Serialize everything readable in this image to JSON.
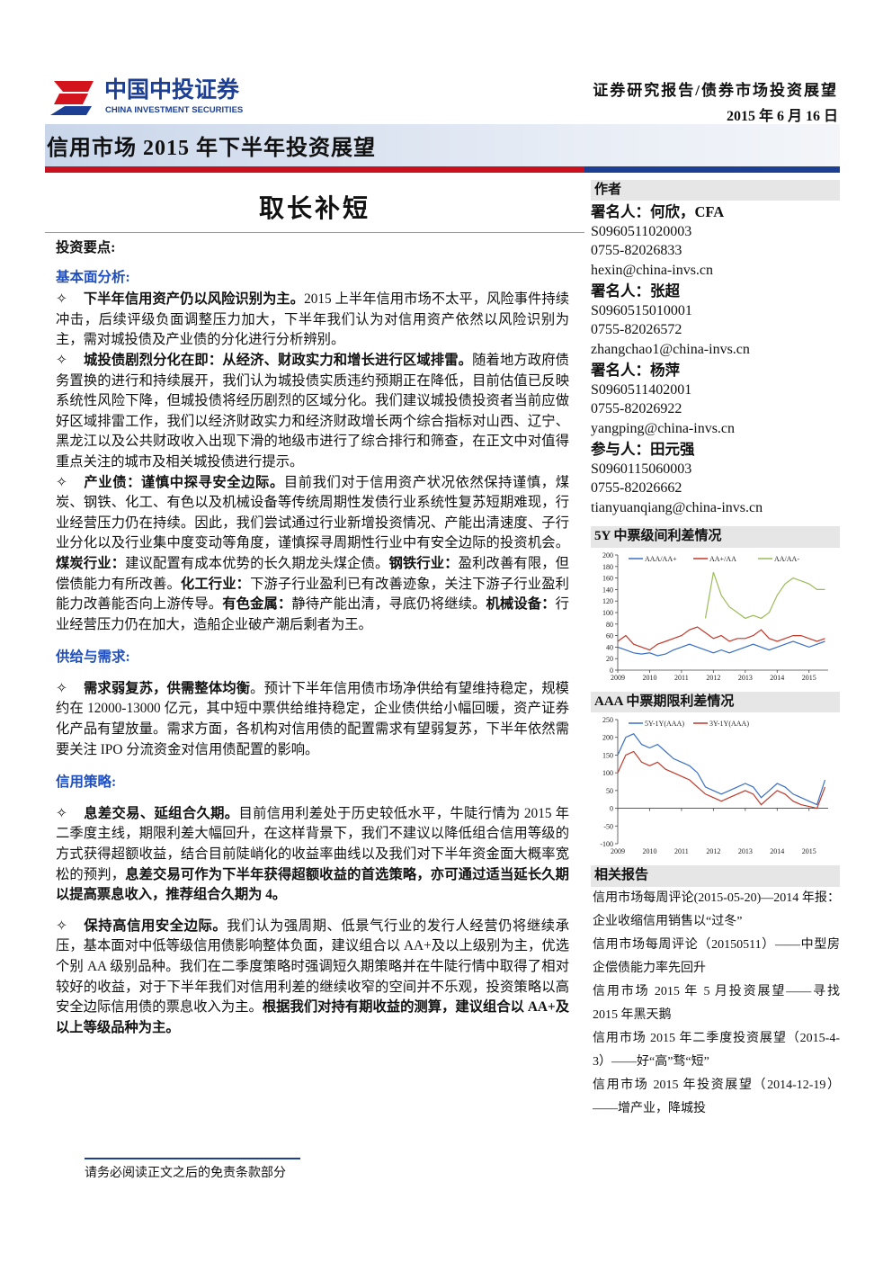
{
  "header": {
    "logo_cn": "中国中投证券",
    "logo_en": "CHINA INVESTMENT SECURITIES",
    "report_type": "证券研究报告/债券市场投资展望",
    "date": "2015 年 6 月 16 日",
    "title": "信用市场 2015 年下半年投资展望"
  },
  "main_title": "取长补短",
  "summary_label": "投资要点:",
  "bullet": "✧",
  "sections": [
    {
      "heading": "基本面分析:",
      "paragraphs": [
        [
          {
            "text": "下半年信用资产仍以风险识别为主。",
            "strong": true
          },
          {
            "text": "2015 上半年信用市场不太平，风险事件持续冲击，后续评级负面调整压力加大，下半年我们认为对信用资产依然以风险识别为主，需对城投债及产业债的分化进行分析辨别。",
            "strong": false
          }
        ],
        [
          {
            "text": "城投债剧烈分化在即：从经济、财政实力和增长进行区域排雷。",
            "strong": true
          },
          {
            "text": "随着地方政府债务置换的进行和持续展开，我们认为城投债实质违约预期正在降低，目前估值已反映系统性风险下降，但城投债将经历剧烈的区域分化。我们建议城投债投资者当前应做好区域排雷工作，我们以经济财政实力和经济财政增长两个综合指标对山西、辽宁、黑龙江以及公共财政收入出现下滑的地级市进行了综合排行和筛查，在正文中对值得重点关注的城市及相关城投债进行提示。",
            "strong": false
          }
        ],
        [
          {
            "text": "产业债：谨慎中探寻安全边际。",
            "strong": true
          },
          {
            "text": "目前我们对于信用资产状况依然保持谨慎，煤炭、钢铁、化工、有色以及机械设备等传统周期性发债行业系统性复苏短期难现，行业经营压力仍在持续。因此，我们尝试通过行业新增投资情况、产能出清速度、子行业分化以及行业集中度变动等角度，谨慎探寻周期性行业中有安全边际的投资机会。",
            "strong": false
          },
          {
            "text": "煤炭行业：",
            "strong": true
          },
          {
            "text": "建议配置有成本优势的长久期龙头煤企债。",
            "strong": false
          },
          {
            "text": "钢铁行业：",
            "strong": true
          },
          {
            "text": "盈利改善有限，但偿债能力有所改善。",
            "strong": false
          },
          {
            "text": "化工行业：",
            "strong": true
          },
          {
            "text": "下游子行业盈利已有改善迹象，关注下游子行业盈利能力改善能否向上游传导。",
            "strong": false
          },
          {
            "text": "有色金属：",
            "strong": true
          },
          {
            "text": "静待产能出清，寻底仍将继续。",
            "strong": false
          },
          {
            "text": "机械设备：",
            "strong": true
          },
          {
            "text": "行业经营压力仍在加大，造船企业破产潮后剩者为王。",
            "strong": false
          }
        ]
      ]
    },
    {
      "heading": "供给与需求:",
      "paragraphs": [
        [
          {
            "text": "需求弱复苏，供需整体均衡",
            "strong": true
          },
          {
            "text": "。预计下半年信用债市场净供给有望维持稳定，规模约在 12000-13000 亿元，其中短中票供给维持稳定，企业债供给小幅回暖，资产证券化产品有望放量。需求方面，各机构对信用债的配置需求有望弱复苏，下半年依然需要关注 IPO 分流资金对信用债配置的影响。",
            "strong": false
          }
        ]
      ]
    },
    {
      "heading": "信用策略:",
      "paragraphs": [
        [
          {
            "text": "息差交易、延组合久期。",
            "strong": true
          },
          {
            "text": "目前信用利差处于历史较低水平，牛陡行情为 2015 年二季度主线，期限利差大幅回升，在这样背景下，我们不建议以降低组合信用等级的方式获得超额收益，结合目前陡峭化的收益率曲线以及我们对下半年资金面大概率宽松的预判，",
            "strong": false
          },
          {
            "text": "息差交易可作为下半年获得超额收益的首选策略，亦可通过适当延长久期以提高票息收入，推荐组合久期为 4。",
            "strong": true
          }
        ],
        [
          {
            "text": "保持高信用安全边际。",
            "strong": true
          },
          {
            "text": "我们认为强周期、低景气行业的发行人经营仍将继续承压，基本面对中低等级信用债影响整体负面，建议组合以 AA+及以上级别为主，优选个别 AA 级别品种。我们在二季度策略时强调短久期策略并在牛陡行情中取得了相对较好的收益，对于下半年我们对信用利差的继续收窄的空间并不乐观，投资策略以高安全边际信用债的票息收入为主。",
            "strong": false
          },
          {
            "text": "根据我们对持有期收益的测算，建议组合以 AA+及以上等级品种为主。",
            "strong": true
          }
        ]
      ]
    }
  ],
  "authors": {
    "label": "作者",
    "people": [
      {
        "role": "署名人：",
        "name": "何欣，CFA",
        "cert": "S0960511020003",
        "phone": "0755-82026833",
        "email": "hexin@china-invs.cn"
      },
      {
        "role": "署名人：",
        "name": "张超",
        "cert": "S0960515010001",
        "phone": "0755-82026572",
        "email": "zhangchao1@china-invs.cn"
      },
      {
        "role": "署名人：",
        "name": "杨萍",
        "cert": "S0960511402001",
        "phone": "0755-82026922",
        "email": "yangping@china-invs.cn"
      },
      {
        "role": "参与人：",
        "name": "田元强",
        "cert": "S0960115060003",
        "phone": "0755-82026662",
        "email": "tianyuanqiang@china-invs.cn"
      }
    ]
  },
  "related": {
    "label": "相关报告",
    "items": [
      "信用市场每周评论(2015-05-20)—2014 年报：企业收缩信用销售以“过冬”",
      "信用市场每周评论（20150511）——中型房企偿债能力率先回升",
      "信用市场 2015 年 5 月投资展望——寻找 2015 年黑天鹅",
      "信用市场 2015 年二季度投资展望（2015-4-3）——好“高”骛“短”",
      "信用市场 2015 年投资展望（2014-12-19）——增产业，降城投"
    ]
  },
  "footer": "请务必阅读正文之后的免责条款部分",
  "chart_data": [
    {
      "type": "line",
      "title": "5Y 中票级间利差情况",
      "x": [
        2009,
        2009.25,
        2009.5,
        2009.75,
        2010,
        2010.25,
        2010.5,
        2010.75,
        2011,
        2011.25,
        2011.5,
        2011.75,
        2012,
        2012.25,
        2012.5,
        2012.75,
        2013,
        2013.25,
        2013.5,
        2013.75,
        2014,
        2014.25,
        2014.5,
        2014.75,
        2015,
        2015.25,
        2015.5
      ],
      "xlim": [
        2009,
        2015.6
      ],
      "xticks": [
        2009,
        2010,
        2011,
        2012,
        2013,
        2014,
        2015
      ],
      "ylim": [
        0,
        200
      ],
      "yticks": [
        0,
        20,
        40,
        60,
        80,
        100,
        120,
        140,
        160,
        180,
        200
      ],
      "series": [
        {
          "name": "AAA/AA+",
          "color": "#3a6fc4",
          "values": [
            40,
            35,
            30,
            28,
            30,
            25,
            28,
            35,
            40,
            45,
            40,
            35,
            30,
            35,
            30,
            35,
            40,
            45,
            40,
            35,
            40,
            45,
            50,
            45,
            40,
            45,
            50
          ]
        },
        {
          "name": "AA+/AA",
          "color": "#c0392b",
          "values": [
            50,
            60,
            45,
            40,
            35,
            45,
            50,
            55,
            60,
            70,
            75,
            65,
            55,
            60,
            50,
            55,
            55,
            60,
            70,
            55,
            50,
            55,
            60,
            60,
            55,
            50,
            55
          ]
        },
        {
          "name": "AA/AA-",
          "color": "#9bbb59",
          "values": [
            null,
            null,
            null,
            null,
            null,
            null,
            null,
            null,
            null,
            null,
            null,
            90,
            170,
            130,
            110,
            100,
            90,
            95,
            90,
            100,
            130,
            150,
            160,
            155,
            150,
            140,
            140
          ]
        }
      ]
    },
    {
      "type": "line",
      "title": "AAA 中票期限利差情况",
      "x": [
        2009,
        2009.25,
        2009.5,
        2009.75,
        2010,
        2010.25,
        2010.5,
        2010.75,
        2011,
        2011.25,
        2011.5,
        2011.75,
        2012,
        2012.25,
        2012.5,
        2012.75,
        2013,
        2013.25,
        2013.5,
        2013.75,
        2014,
        2014.25,
        2014.5,
        2014.75,
        2015,
        2015.25,
        2015.5
      ],
      "xlim": [
        2009,
        2015.6
      ],
      "xticks": [
        2009,
        2010,
        2011,
        2012,
        2013,
        2014,
        2015
      ],
      "ylim": [
        -100,
        250
      ],
      "yticks": [
        -100,
        -50,
        0,
        50,
        100,
        150,
        200,
        250
      ],
      "series": [
        {
          "name": "5Y-1Y(AAA)",
          "color": "#3a6fc4",
          "values": [
            150,
            200,
            210,
            180,
            170,
            180,
            160,
            140,
            130,
            120,
            100,
            60,
            50,
            40,
            50,
            60,
            70,
            60,
            30,
            50,
            70,
            60,
            40,
            30,
            20,
            10,
            80
          ]
        },
        {
          "name": "3Y-1Y(AAA)",
          "color": "#c0392b",
          "values": [
            100,
            150,
            160,
            130,
            120,
            130,
            110,
            100,
            90,
            80,
            60,
            40,
            30,
            20,
            30,
            40,
            50,
            40,
            10,
            30,
            50,
            40,
            20,
            10,
            5,
            0,
            60
          ]
        }
      ]
    }
  ]
}
